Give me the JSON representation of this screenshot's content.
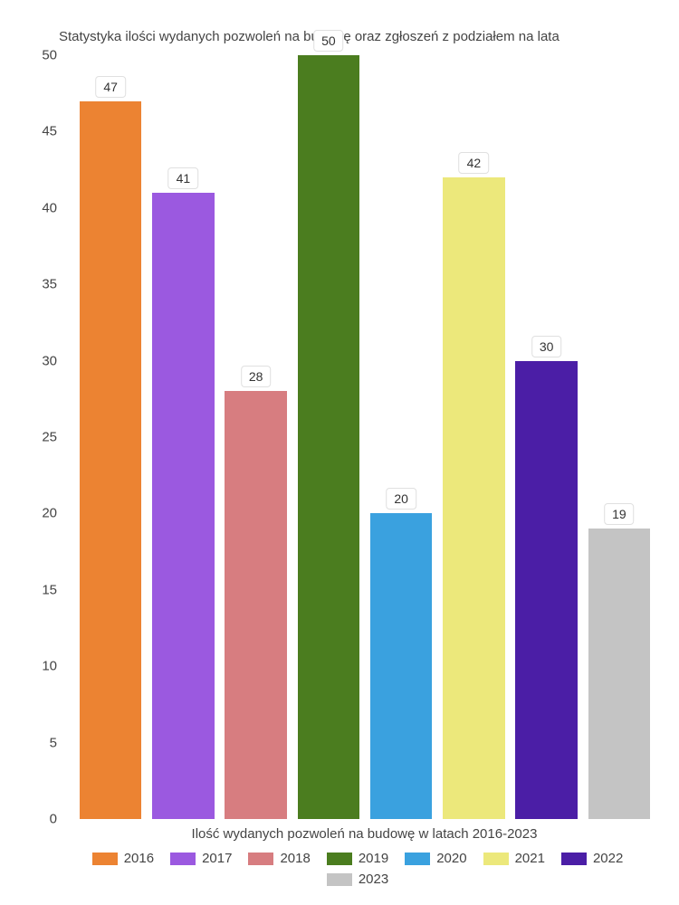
{
  "chart": {
    "type": "bar",
    "title": "Statystyka ilości wydanych pozwoleń na budowę oraz zgłoszeń z podziałem na lata",
    "title_fontsize": 15,
    "title_color": "#444444",
    "x_axis_label": "Ilość wydanych pozwoleń na budowę w latach 2016-2023",
    "label_fontsize": 15,
    "label_color": "#444444",
    "background_color": "#ffffff",
    "ylim": [
      0,
      50
    ],
    "ytick_step": 5,
    "yticks": [
      0,
      5,
      10,
      15,
      20,
      25,
      30,
      35,
      40,
      45,
      50
    ],
    "categories": [
      "2016",
      "2017",
      "2018",
      "2019",
      "2020",
      "2021",
      "2022",
      "2023"
    ],
    "values": [
      47,
      41,
      28,
      50,
      20,
      42,
      30,
      19
    ],
    "bar_colors": [
      "#ec8332",
      "#9b59e0",
      "#d77d80",
      "#4b7d1f",
      "#3aa1df",
      "#ece87b",
      "#4b1ea6",
      "#c4c4c4"
    ],
    "value_label_bg": "#ffffff",
    "value_label_border": "#e0e0e0",
    "value_label_fontsize": 14,
    "value_label_color": "#333333",
    "bar_width_ratio": 0.92,
    "legend_position": "bottom",
    "legend_swatch_w": 28,
    "legend_swatch_h": 14
  }
}
